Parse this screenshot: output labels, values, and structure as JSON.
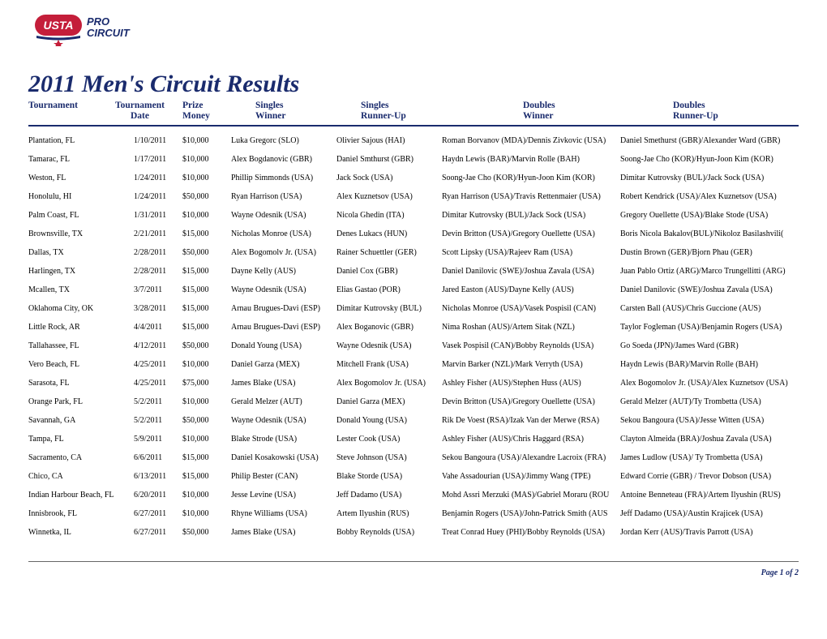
{
  "title": "2011 Men's Circuit Results",
  "page_footer": "Page 1 of 2",
  "colors": {
    "primary": "#1a2b6d",
    "background": "#ffffff",
    "footer_line": "#666666"
  },
  "logo": {
    "alt": "USTA Pro Circuit",
    "usta_text": "USTA",
    "pro_text": "PRO",
    "circuit_text": "CIRCUIT"
  },
  "headers": [
    {
      "line1": "Tournament",
      "line2": ""
    },
    {
      "line1": "Tournament",
      "line2": "Date"
    },
    {
      "line1": "Prize",
      "line2": "Money"
    },
    {
      "line1": "Singles",
      "line2": "Winner"
    },
    {
      "line1": "Singles",
      "line2": "Runner-Up"
    },
    {
      "line1": "Doubles",
      "line2": "Winner"
    },
    {
      "line1": "Doubles",
      "line2": "Runner-Up"
    }
  ],
  "rows": [
    {
      "tournament": "Plantation, FL",
      "date": "1/10/2011",
      "money": "$10,000",
      "swinner": "Luka Gregorc (SLO)",
      "srunner": "Olivier Sajous (HAI)",
      "dwinner": "Roman Borvanov (MDA)/Dennis Zivkovic (USA)",
      "drunner": "Daniel Smethurst (GBR)/Alexander Ward (GBR)"
    },
    {
      "tournament": "Tamarac, FL",
      "date": "1/17/2011",
      "money": "$10,000",
      "swinner": "Alex Bogdanovic (GBR)",
      "srunner": "Daniel Smthurst (GBR)",
      "dwinner": "Haydn Lewis (BAR)/Marvin Rolle (BAH)",
      "drunner": "Soong-Jae Cho (KOR)/Hyun-Joon Kim (KOR)"
    },
    {
      "tournament": "Weston, FL",
      "date": "1/24/2011",
      "money": "$10,000",
      "swinner": "Phillip Simmonds (USA)",
      "srunner": "Jack Sock (USA)",
      "dwinner": "Soong-Jae Cho (KOR)/Hyun-Joon Kim (KOR)",
      "drunner": "Dimitar Kutrovsky (BUL)/Jack Sock (USA)"
    },
    {
      "tournament": "Honolulu, HI",
      "date": "1/24/2011",
      "money": "$50,000",
      "swinner": "Ryan Harrison (USA)",
      "srunner": "Alex Kuznetsov (USA)",
      "dwinner": "Ryan Harrison (USA)/Travis Rettenmaier (USA)",
      "drunner": "Robert Kendrick (USA)/Alex Kuznetsov (USA)"
    },
    {
      "tournament": "Palm Coast, FL",
      "date": "1/31/2011",
      "money": "$10,000",
      "swinner": "Wayne Odesnik (USA)",
      "srunner": "Nicola Ghedin (ITA)",
      "dwinner": "Dimitar Kutrovsky (BUL)/Jack Sock (USA)",
      "drunner": "Gregory Ouellette (USA)/Blake Stode (USA)"
    },
    {
      "tournament": "Brownsville, TX",
      "date": "2/21/2011",
      "money": "$15,000",
      "swinner": "Nicholas Monroe (USA)",
      "srunner": "Denes Lukacs (HUN)",
      "dwinner": "Devin Britton (USA)/Gregory Ouellette (USA)",
      "drunner": "Boris Nicola Bakalov(BUL)/Nikoloz Basilashvili("
    },
    {
      "tournament": "Dallas, TX",
      "date": "2/28/2011",
      "money": "$50,000",
      "swinner": "Alex Bogomolv Jr. (USA)",
      "srunner": "Rainer Schuettler (GER)",
      "dwinner": "Scott Lipsky (USA)/Rajeev Ram (USA)",
      "drunner": "Dustin Brown (GER)/Bjorn Phau (GER)"
    },
    {
      "tournament": "Harlingen, TX",
      "date": "2/28/2011",
      "money": "$15,000",
      "swinner": "Dayne Kelly (AUS)",
      "srunner": "Daniel Cox (GBR)",
      "dwinner": "Daniel Danilovic (SWE)/Joshua Zavala (USA)",
      "drunner": "Juan Pablo Ortiz (ARG)/Marco Trungellitti (ARG)"
    },
    {
      "tournament": "Mcallen, TX",
      "date": "3/7/2011",
      "money": "$15,000",
      "swinner": "Wayne Odesnik (USA)",
      "srunner": "Elias Gastao (POR)",
      "dwinner": "Jared Easton (AUS)/Dayne Kelly (AUS)",
      "drunner": "Daniel Danilovic (SWE)/Joshua Zavala (USA)"
    },
    {
      "tournament": "Oklahoma City, OK",
      "date": "3/28/2011",
      "money": "$15,000",
      "swinner": "Arnau Brugues-Davi (ESP)",
      "srunner": "Dimitar Kutrovsky (BUL)",
      "dwinner": "Nicholas Monroe (USA)/Vasek Pospisil (CAN)",
      "drunner": "Carsten Ball (AUS)/Chris Guccione (AUS)"
    },
    {
      "tournament": "Little Rock, AR",
      "date": "4/4/2011",
      "money": "$15,000",
      "swinner": "Arnau Brugues-Davi (ESP)",
      "srunner": "Alex Boganovic (GBR)",
      "dwinner": "Nima Roshan (AUS)/Artem Sitak (NZL)",
      "drunner": "Taylor Fogleman (USA)/Benjamin Rogers (USA)"
    },
    {
      "tournament": "Tallahassee, FL",
      "date": "4/12/2011",
      "money": "$50,000",
      "swinner": "Donald Young (USA)",
      "srunner": "Wayne Odesnik (USA)",
      "dwinner": "Vasek Pospisil (CAN)/Bobby Reynolds (USA)",
      "drunner": "Go Soeda (JPN)/James Ward (GBR)"
    },
    {
      "tournament": "Vero Beach, FL",
      "date": "4/25/2011",
      "money": "$10,000",
      "swinner": "Daniel Garza (MEX)",
      "srunner": "Mitchell Frank (USA)",
      "dwinner": "Marvin Barker (NZL)/Mark Verryth (USA)",
      "drunner": "Haydn Lewis (BAR)/Marvin Rolle (BAH)"
    },
    {
      "tournament": "Sarasota, FL",
      "date": "4/25/2011",
      "money": "$75,000",
      "swinner": "James Blake (USA)",
      "srunner": "Alex Bogomolov Jr. (USA)",
      "dwinner": "Ashley Fisher (AUS)/Stephen Huss (AUS)",
      "drunner": "Alex Bogomolov Jr. (USA)/Alex Kuznetsov (USA)"
    },
    {
      "tournament": "Orange Park, FL",
      "date": "5/2/2011",
      "money": "$10,000",
      "swinner": "Gerald Melzer (AUT)",
      "srunner": "Daniel Garza (MEX)",
      "dwinner": "Devin Britton (USA)/Gregory Ouellette (USA)",
      "drunner": "Gerald Melzer (AUT)/Ty Trombetta (USA)"
    },
    {
      "tournament": "Savannah, GA",
      "date": "5/2/2011",
      "money": "$50,000",
      "swinner": "Wayne Odesnik (USA)",
      "srunner": "Donald Young (USA)",
      "dwinner": "Rik De Voest (RSA)/Izak Van der Merwe (RSA)",
      "drunner": "Sekou Bangoura (USA)/Jesse Witten (USA)"
    },
    {
      "tournament": "Tampa, FL",
      "date": "5/9/2011",
      "money": "$10,000",
      "swinner": "Blake Strode (USA)",
      "srunner": "Lester Cook (USA)",
      "dwinner": "Ashley Fisher (AUS)/Chris Haggard (RSA)",
      "drunner": "Clayton Almeida (BRA)/Joshua Zavala (USA)"
    },
    {
      "tournament": "Sacramento, CA",
      "date": "6/6/2011",
      "money": "$15,000",
      "swinner": "Daniel Kosakowski (USA)",
      "srunner": "Steve Johnson (USA)",
      "dwinner": "Sekou Bangoura (USA)/Alexandre Lacroix (FRA)",
      "drunner": "James Ludlow (USA)/ Ty Trombetta (USA)"
    },
    {
      "tournament": "Chico, CA",
      "date": "6/13/2011",
      "money": "$15,000",
      "swinner": "Philip Bester (CAN)",
      "srunner": "Blake Storde (USA)",
      "dwinner": "Vahe Assadourian (USA)/Jimmy Wang (TPE)",
      "drunner": "Edward Corrie (GBR) / Trevor Dobson (USA)"
    },
    {
      "tournament": "Indian Harbour Beach, FL",
      "date": "6/20/2011",
      "money": "$10,000",
      "swinner": "Jesse Levine (USA)",
      "srunner": "Jeff Dadamo (USA)",
      "dwinner": "Mohd Assri Merzuki (MAS)/Gabriel Moraru (ROU",
      "drunner": "Antoine Benneteau (FRA)/Artem Ilyushin (RUS)"
    },
    {
      "tournament": "Innisbrook, FL",
      "date": "6/27/2011",
      "money": "$10,000",
      "swinner": "Rhyne Williams (USA)",
      "srunner": "Artem Ilyushin (RUS)",
      "dwinner": "Benjamin Rogers (USA)/John-Patrick Smith (AUS",
      "drunner": "Jeff Dadamo (USA)/Austin Krajicek (USA)"
    },
    {
      "tournament": "Winnetka, IL",
      "date": "6/27/2011",
      "money": "$50,000",
      "swinner": "James Blake (USA)",
      "srunner": "Bobby Reynolds (USA)",
      "dwinner": "Treat Conrad Huey (PHI)/Bobby Reynolds (USA)",
      "drunner": "Jordan Kerr (AUS)/Travis Parrott (USA)"
    }
  ]
}
